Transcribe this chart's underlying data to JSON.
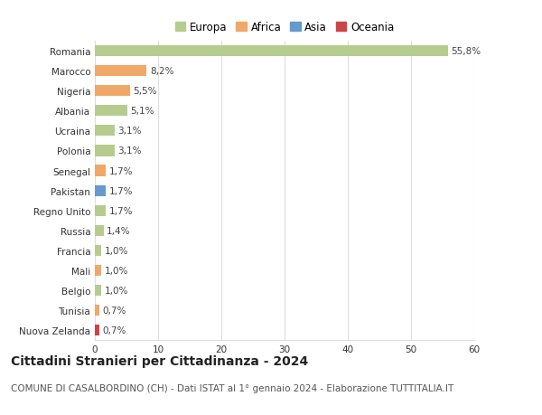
{
  "countries": [
    "Romania",
    "Marocco",
    "Nigeria",
    "Albania",
    "Ucraina",
    "Polonia",
    "Senegal",
    "Pakistan",
    "Regno Unito",
    "Russia",
    "Francia",
    "Mali",
    "Belgio",
    "Tunisia",
    "Nuova Zelanda"
  ],
  "values": [
    55.8,
    8.2,
    5.5,
    5.1,
    3.1,
    3.1,
    1.7,
    1.7,
    1.7,
    1.4,
    1.0,
    1.0,
    1.0,
    0.7,
    0.7
  ],
  "labels": [
    "55,8%",
    "8,2%",
    "5,5%",
    "5,1%",
    "3,1%",
    "3,1%",
    "1,7%",
    "1,7%",
    "1,7%",
    "1,4%",
    "1,0%",
    "1,0%",
    "1,0%",
    "0,7%",
    "0,7%"
  ],
  "continents": [
    "Europa",
    "Africa",
    "Africa",
    "Europa",
    "Europa",
    "Europa",
    "Africa",
    "Asia",
    "Europa",
    "Europa",
    "Europa",
    "Africa",
    "Europa",
    "Africa",
    "Oceania"
  ],
  "colors": {
    "Europa": "#b5cc8e",
    "Africa": "#f0a868",
    "Asia": "#6699cc",
    "Oceania": "#cc4444"
  },
  "legend_order": [
    "Europa",
    "Africa",
    "Asia",
    "Oceania"
  ],
  "title": "Cittadini Stranieri per Cittadinanza - 2024",
  "subtitle": "COMUNE DI CASALBORDINO (CH) - Dati ISTAT al 1° gennaio 2024 - Elaborazione TUTTITALIA.IT",
  "xlim": [
    0,
    60
  ],
  "xticks": [
    0,
    10,
    20,
    30,
    40,
    50,
    60
  ],
  "bg_color": "#ffffff",
  "grid_color": "#dddddd",
  "bar_height": 0.55,
  "label_fontsize": 7.5,
  "tick_fontsize": 7.5,
  "legend_fontsize": 8.5,
  "title_fontsize": 10,
  "subtitle_fontsize": 7.5
}
